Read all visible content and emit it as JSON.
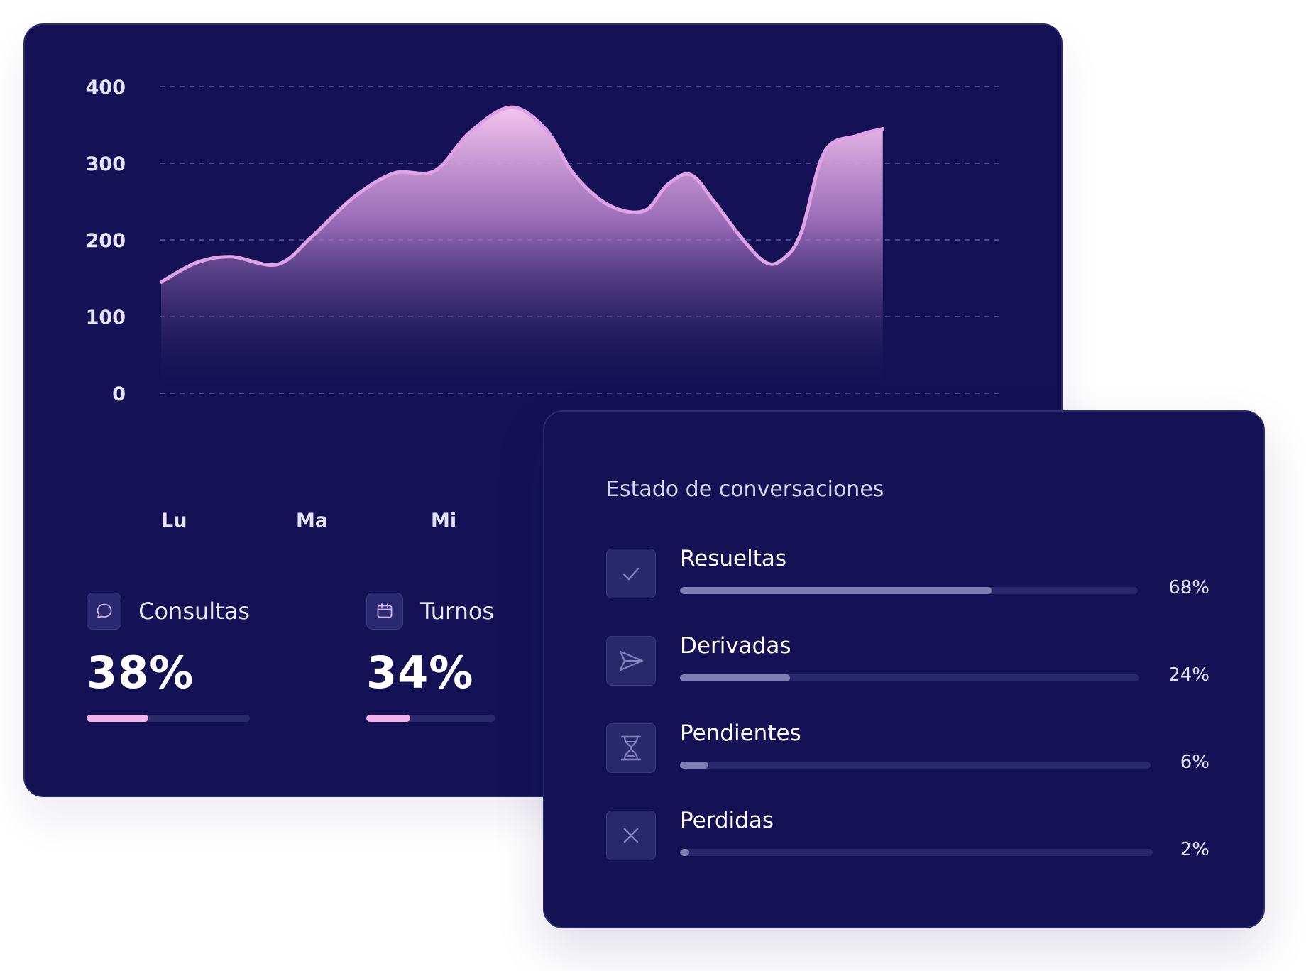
{
  "colors": {
    "card_background": "#141254",
    "area_line": "#e0a2e6",
    "area_fill_top": "#f4c4ef",
    "stat_bar": "#f0b3ea",
    "status_bar": "#7e7eb4",
    "track": "#28286a"
  },
  "chart_data": {
    "type": "area",
    "title": "",
    "xlabel": "",
    "ylabel": "",
    "ylim": [
      0,
      400
    ],
    "yticks": [
      "400",
      "300",
      "200",
      "100",
      "0"
    ],
    "categories": [
      "Lu",
      "Ma",
      "Mi"
    ],
    "grid": true,
    "series": [
      {
        "x": [
          0,
          0.3,
          0.6,
          1,
          1.3,
          1.65,
          2,
          2.35,
          2.65,
          3,
          3.3,
          3.55,
          3.85,
          4.15,
          4.35,
          4.55,
          4.75,
          5.0,
          5.2,
          5.35,
          5.5,
          5.7,
          5.98,
          6.2
        ],
        "values": [
          145,
          170,
          178,
          168,
          205,
          255,
          287,
          290,
          340,
          373,
          345,
          285,
          245,
          238,
          272,
          285,
          250,
          200,
          170,
          176,
          210,
          315,
          336,
          345
        ]
      }
    ]
  },
  "stats": [
    {
      "label": "Consultas",
      "value": "38%",
      "progress": 0.38,
      "icon": "chat-bubble-icon"
    },
    {
      "label": "Turnos",
      "value": "34%",
      "progress": 0.34,
      "icon": "calendar-icon"
    }
  ],
  "status": {
    "title": "Estado de conversaciones",
    "items": [
      {
        "label": "Resueltas",
        "percent": "68%",
        "progress": 0.68,
        "icon": "check-icon"
      },
      {
        "label": "Derivadas",
        "percent": "24%",
        "progress": 0.24,
        "icon": "send-icon"
      },
      {
        "label": "Pendientes",
        "percent": "6%",
        "progress": 0.06,
        "icon": "hourglass-icon"
      },
      {
        "label": "Perdidas",
        "percent": "2%",
        "progress": 0.02,
        "icon": "close-icon"
      }
    ]
  }
}
